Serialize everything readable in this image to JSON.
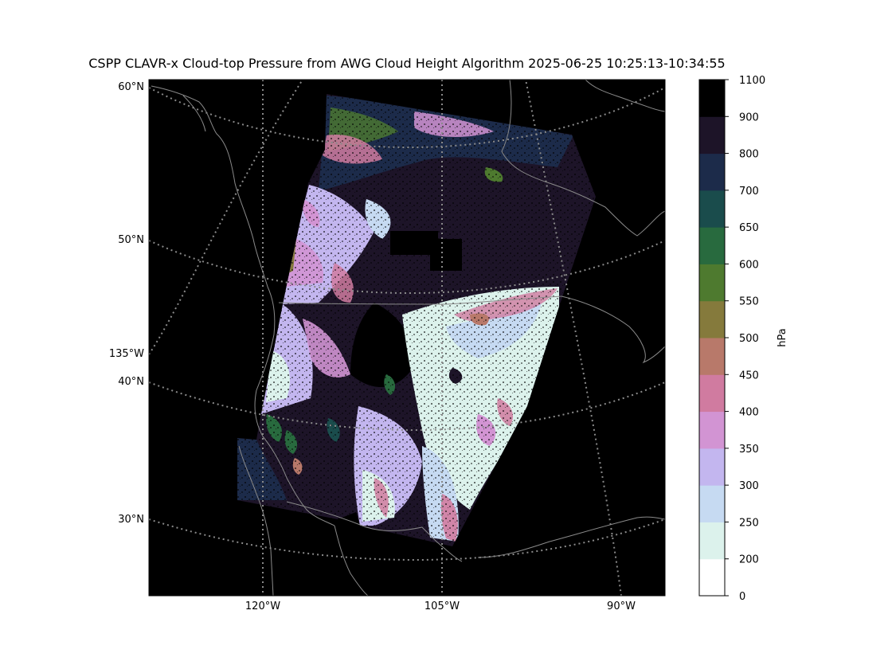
{
  "title": "CSPP CLAVR-x Cloud-top Pressure from AWG Cloud Height Algorithm 2025-06-25 10:25:13-10:34:55",
  "map": {
    "lat_labels": [
      "60°N",
      "50°N",
      "40°N",
      "30°N"
    ],
    "lon_labels_bottom": [
      "120°W",
      "105°W",
      "90°W"
    ],
    "lon_labels_left": [
      "135°W"
    ],
    "background_color": "#000000",
    "coastline_color": "#8a8a8a",
    "gridline_color": "#8a8a8a"
  },
  "colorbar": {
    "label": "hPa",
    "ticks": [
      "0",
      "200",
      "250",
      "300",
      "350",
      "400",
      "450",
      "500",
      "550",
      "600",
      "650",
      "700",
      "800",
      "900",
      "1100"
    ],
    "colors": [
      "#ffffff",
      "#dcf2ec",
      "#c6daf2",
      "#c3b6ef",
      "#d294d3",
      "#d07ba0",
      "#b8796a",
      "#857a3c",
      "#4e7a2f",
      "#286a3e",
      "#1a4c4c",
      "#1c2b4a",
      "#1d1428",
      "#000000"
    ]
  }
}
